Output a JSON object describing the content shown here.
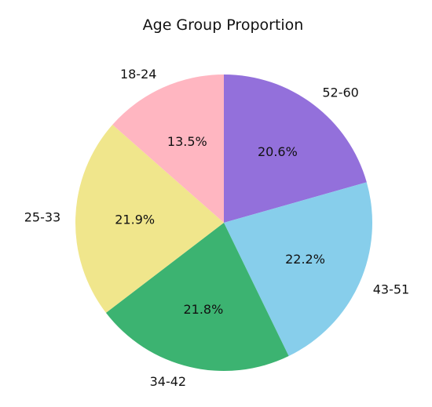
{
  "chart_data": {
    "type": "pie",
    "title": "Age Group Proportion",
    "slices": [
      {
        "label": "52-60",
        "value": 20.6,
        "pct_label": "20.6%",
        "color": "#9370DB"
      },
      {
        "label": "43-51",
        "value": 22.2,
        "pct_label": "22.2%",
        "color": "#87CEEB"
      },
      {
        "label": "34-42",
        "value": 21.8,
        "pct_label": "21.8%",
        "color": "#3CB371"
      },
      {
        "label": "25-33",
        "value": 21.9,
        "pct_label": "21.9%",
        "color": "#F0E68C"
      },
      {
        "label": "18-24",
        "value": 13.5,
        "pct_label": "13.5%",
        "color": "#FFB6C1"
      }
    ],
    "start": "top",
    "direction": "clockwise",
    "legend": "none"
  }
}
